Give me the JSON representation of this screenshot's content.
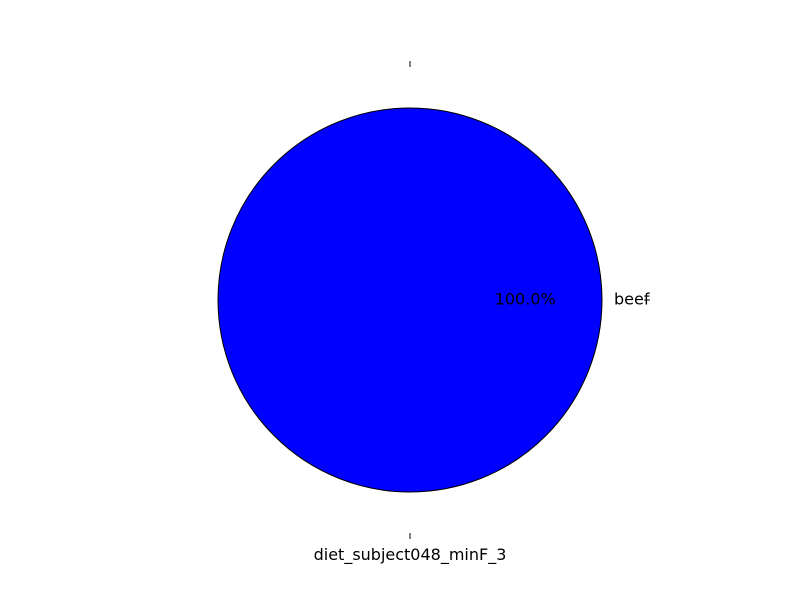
{
  "chart_data": {
    "type": "pie",
    "title": "",
    "xlabel": "diet_subject048_minF_3",
    "ylabel": "",
    "slices": [
      {
        "label": "beef",
        "value": 100.0,
        "percent_label": "100.0%",
        "color": "#0000ff"
      }
    ],
    "edge_color": "#000000"
  }
}
